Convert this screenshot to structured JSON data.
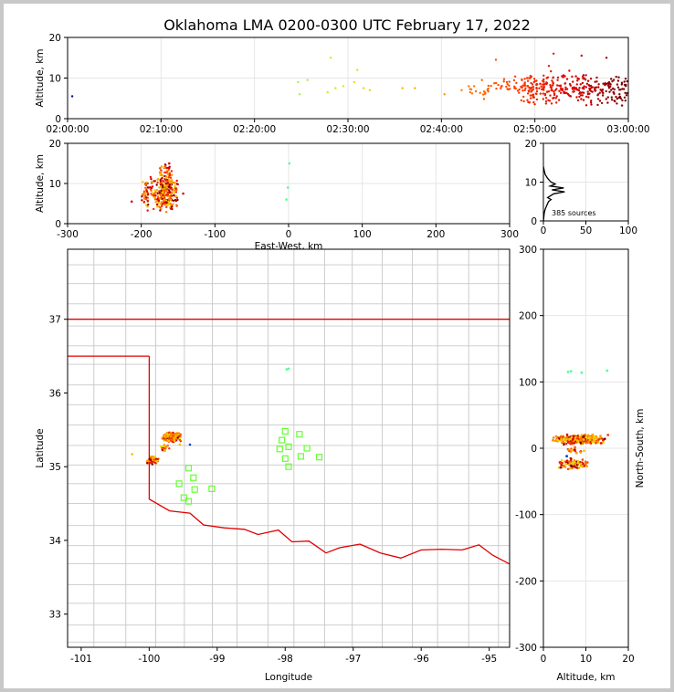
{
  "title": "Oklahoma LMA 0200-0300 UTC February 17, 2022",
  "colors": {
    "state_border": "#e00000",
    "county_lines": "#c8c8c8",
    "station_marker": "#66ff33",
    "grid": "#e6e6e6"
  },
  "chart_data": [
    {
      "id": "time_altitude",
      "type": "scatter",
      "ylabel": "Altitude, km",
      "ylim": [
        0,
        20
      ],
      "yticks": [
        "0",
        "10",
        "20"
      ],
      "xlim": [
        "02:00:00",
        "03:00:00"
      ],
      "xticks": [
        "02:00:00",
        "02:10:00",
        "02:20:00",
        "02:30:00",
        "02:40:00",
        "02:50:00",
        "03:00:00"
      ],
      "points": [
        {
          "x": "02:00:30",
          "y": 5.5
        },
        {
          "x": "02:24:40",
          "y": 9.0
        },
        {
          "x": "02:24:50",
          "y": 6.0
        },
        {
          "x": "02:25:40",
          "y": 9.5
        },
        {
          "x": "02:27:50",
          "y": 6.5
        },
        {
          "x": "02:28:10",
          "y": 15.0
        },
        {
          "x": "02:28:40",
          "y": 7.5
        },
        {
          "x": "02:29:30",
          "y": 8.0
        },
        {
          "x": "02:30:40",
          "y": 9.0
        },
        {
          "x": "02:31:00",
          "y": 12.0
        },
        {
          "x": "02:31:40",
          "y": 7.5
        },
        {
          "x": "02:32:20",
          "y": 7.0
        },
        {
          "x": "02:35:50",
          "y": 7.5
        },
        {
          "x": "02:37:10",
          "y": 7.5
        },
        {
          "x": "02:40:20",
          "y": 6.0
        },
        {
          "x": "02:42:10",
          "y": 7.0
        },
        {
          "x": "02:43:30",
          "y": 8.0
        },
        {
          "x": "02:44:20",
          "y": 9.5
        },
        {
          "x": "02:45:50",
          "y": 14.5
        },
        {
          "x": "02:47:00",
          "y": 9.0
        },
        {
          "x": "02:49:10",
          "y": 10.0
        },
        {
          "x": "02:51:30",
          "y": 13.0
        },
        {
          "x": "02:52:00",
          "y": 16.0
        },
        {
          "x": "02:55:00",
          "y": 15.5
        },
        {
          "x": "02:57:40",
          "y": 15.0
        }
      ],
      "dense_segments": [
        {
          "start": "02:42:30",
          "end": "02:45:00",
          "count": 14,
          "y_min": 4.0,
          "y_max": 9.0
        },
        {
          "start": "02:45:00",
          "end": "02:48:30",
          "count": 30,
          "y_min": 5.0,
          "y_max": 11.0
        },
        {
          "start": "02:48:30",
          "end": "02:52:00",
          "count": 120,
          "y_min": 3.0,
          "y_max": 12.0
        },
        {
          "start": "02:52:00",
          "end": "02:55:30",
          "count": 90,
          "y_min": 3.0,
          "y_max": 12.0
        },
        {
          "start": "02:55:30",
          "end": "03:00:00",
          "count": 110,
          "y_min": 3.0,
          "y_max": 11.0
        }
      ]
    },
    {
      "id": "ew_altitude",
      "type": "scatter",
      "xlabel": "East-West, km",
      "ylabel": "Altitude, km",
      "xlim": [
        -300,
        300
      ],
      "ylim": [
        0,
        20
      ],
      "xticks": [
        "-300",
        "-200",
        "-100",
        "0",
        "100",
        "200",
        "300"
      ],
      "yticks": [
        "0",
        "10",
        "20"
      ],
      "points": [
        {
          "x": -213,
          "y": 5.5
        },
        {
          "x": -1,
          "y": 9.0
        },
        {
          "x": -3,
          "y": 6.0
        },
        {
          "x": 1,
          "y": 15.0
        },
        {
          "x": -143,
          "y": 7.5
        },
        {
          "x": -162,
          "y": 15.0
        }
      ],
      "clusters": [
        {
          "x_min": -200,
          "x_max": -150,
          "y_min": 3.0,
          "y_max": 12.0,
          "count": 200
        },
        {
          "x_min": -175,
          "x_max": -158,
          "y_min": 2.5,
          "y_max": 15.5,
          "count": 170
        }
      ]
    },
    {
      "id": "altitude_histogram",
      "type": "line",
      "xlim": [
        0,
        100
      ],
      "ylim": [
        0,
        20
      ],
      "xticks": [
        "0",
        "50",
        "100"
      ],
      "yticks": [
        "0",
        "10",
        "20"
      ],
      "annotation": "385 sources",
      "profile": [
        {
          "altitude": 0,
          "count": 0
        },
        {
          "altitude": 2,
          "count": 1
        },
        {
          "altitude": 3,
          "count": 2
        },
        {
          "altitude": 4,
          "count": 4
        },
        {
          "altitude": 5,
          "count": 6
        },
        {
          "altitude": 5.5,
          "count": 9
        },
        {
          "altitude": 6,
          "count": 5
        },
        {
          "altitude": 7,
          "count": 12
        },
        {
          "altitude": 7.5,
          "count": 25
        },
        {
          "altitude": 8,
          "count": 10
        },
        {
          "altitude": 8.5,
          "count": 24
        },
        {
          "altitude": 9,
          "count": 8
        },
        {
          "altitude": 9.5,
          "count": 14
        },
        {
          "altitude": 10,
          "count": 9
        },
        {
          "altitude": 11,
          "count": 5
        },
        {
          "altitude": 12,
          "count": 2
        },
        {
          "altitude": 13,
          "count": 1
        },
        {
          "altitude": 14,
          "count": 0
        }
      ]
    },
    {
      "id": "plan_view",
      "type": "scatter",
      "xlabel": "Longitude",
      "ylabel": "Latitude",
      "xlim": [
        -101.2,
        -94.7
      ],
      "ylim": [
        32.55,
        37.95
      ],
      "xticks": [
        "-101",
        "-100",
        "-99",
        "-98",
        "-97",
        "-96",
        "-95"
      ],
      "yticks": [
        "33",
        "34",
        "35",
        "36",
        "37"
      ],
      "stations": [
        {
          "lon": -98.0,
          "lat": 35.48
        },
        {
          "lon": -97.79,
          "lat": 35.44
        },
        {
          "lon": -98.05,
          "lat": 35.36
        },
        {
          "lon": -97.95,
          "lat": 35.27
        },
        {
          "lon": -97.68,
          "lat": 35.25
        },
        {
          "lon": -98.08,
          "lat": 35.24
        },
        {
          "lon": -97.77,
          "lat": 35.14
        },
        {
          "lon": -97.5,
          "lat": 35.13
        },
        {
          "lon": -98.0,
          "lat": 35.11
        },
        {
          "lon": -97.95,
          "lat": 35.0
        },
        {
          "lon": -99.42,
          "lat": 34.98
        },
        {
          "lon": -99.35,
          "lat": 34.85
        },
        {
          "lon": -99.56,
          "lat": 34.77
        },
        {
          "lon": -99.33,
          "lat": 34.69
        },
        {
          "lon": -99.08,
          "lat": 34.7
        },
        {
          "lon": -99.49,
          "lat": 34.58
        },
        {
          "lon": -99.42,
          "lat": 34.53
        }
      ],
      "sources": [
        {
          "lon": -97.98,
          "lat": 36.32
        },
        {
          "lon": -97.95,
          "lat": 36.33
        },
        {
          "lon": -100.25,
          "lat": 35.17
        },
        {
          "lon": -99.55,
          "lat": 35.3
        },
        {
          "lon": -99.4,
          "lat": 35.3
        }
      ],
      "clusters": [
        {
          "lon_min": -99.82,
          "lon_max": -99.52,
          "lat_min": 35.33,
          "lat_max": 35.47,
          "count": 260
        },
        {
          "lon_min": -100.05,
          "lon_max": -99.85,
          "lat_min": 35.02,
          "lat_max": 35.15,
          "count": 50
        },
        {
          "lon_min": -99.85,
          "lon_max": -99.7,
          "lat_min": 35.2,
          "lat_max": 35.3,
          "count": 30
        }
      ]
    },
    {
      "id": "ns_altitude",
      "type": "scatter",
      "xlabel": "Altitude, km",
      "ylabel": "North-South, km",
      "xlim": [
        0,
        20
      ],
      "ylim": [
        -300,
        300
      ],
      "xticks": [
        "0",
        "10",
        "20"
      ],
      "yticks": [
        "-300",
        "-200",
        "-100",
        "0",
        "100",
        "200",
        "300"
      ],
      "points": [
        {
          "x": 5.8,
          "y": 115
        },
        {
          "x": 6.5,
          "y": 116
        },
        {
          "x": 9.0,
          "y": 114
        },
        {
          "x": 15.0,
          "y": 117
        },
        {
          "x": 5.5,
          "y": -12
        },
        {
          "x": 15.2,
          "y": 20
        }
      ],
      "clusters": [
        {
          "x_min": 2.0,
          "x_max": 15.0,
          "y_min": 5,
          "y_max": 22,
          "count": 260
        },
        {
          "x_min": 3.0,
          "x_max": 11.0,
          "y_min": -32,
          "y_max": -15,
          "count": 80
        },
        {
          "x_min": 5.0,
          "x_max": 10.0,
          "y_min": -8,
          "y_max": 2,
          "count": 20
        }
      ]
    }
  ]
}
